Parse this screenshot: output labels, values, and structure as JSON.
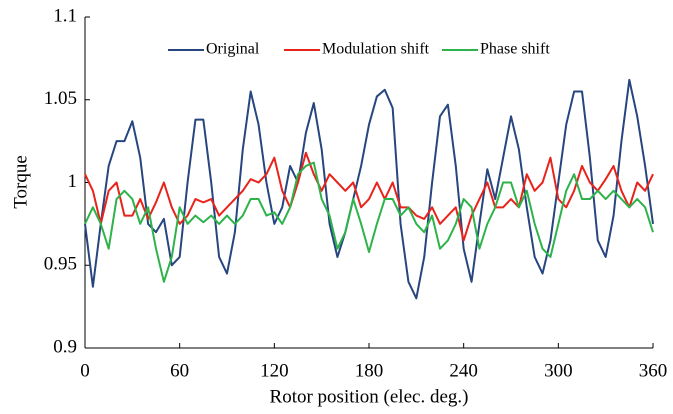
{
  "chart_data": {
    "type": "line",
    "xlabel": "Rotor position (elec. deg.)",
    "ylabel": "Torque",
    "x": [
      0,
      5,
      10,
      15,
      20,
      25,
      30,
      35,
      40,
      45,
      50,
      55,
      60,
      65,
      70,
      75,
      80,
      85,
      90,
      95,
      100,
      105,
      110,
      115,
      120,
      125,
      130,
      135,
      140,
      145,
      150,
      155,
      160,
      165,
      170,
      175,
      180,
      185,
      190,
      195,
      200,
      205,
      210,
      215,
      220,
      225,
      230,
      235,
      240,
      245,
      250,
      255,
      260,
      265,
      270,
      275,
      280,
      285,
      290,
      295,
      300,
      305,
      310,
      315,
      320,
      325,
      330,
      335,
      340,
      345,
      350,
      355,
      360
    ],
    "series": [
      {
        "name": "Original",
        "color": "#27457f",
        "values": [
          0.975,
          0.937,
          0.975,
          1.01,
          1.025,
          1.025,
          1.037,
          1.015,
          0.975,
          0.97,
          0.978,
          0.95,
          0.955,
          1.0,
          1.038,
          1.038,
          1.0,
          0.955,
          0.945,
          0.97,
          1.02,
          1.055,
          1.035,
          1.0,
          0.975,
          0.985,
          1.01,
          1.0,
          1.03,
          1.048,
          1.02,
          0.975,
          0.955,
          0.97,
          0.99,
          1.01,
          1.035,
          1.052,
          1.056,
          1.045,
          0.975,
          0.94,
          0.93,
          0.955,
          1.0,
          1.04,
          1.047,
          1.01,
          0.96,
          0.94,
          0.975,
          1.008,
          0.99,
          1.015,
          1.04,
          1.02,
          0.985,
          0.955,
          0.945,
          0.965,
          1.0,
          1.035,
          1.055,
          1.055,
          1.015,
          0.965,
          0.955,
          0.98,
          1.025,
          1.062,
          1.04,
          1.01,
          0.975
        ]
      },
      {
        "name": "Modulation shift",
        "color": "#e8231c",
        "values": [
          1.005,
          0.995,
          0.975,
          0.995,
          1.0,
          0.98,
          0.98,
          0.99,
          0.978,
          0.988,
          1.0,
          0.985,
          0.975,
          0.98,
          0.99,
          0.988,
          0.99,
          0.98,
          0.985,
          0.99,
          0.995,
          1.002,
          1.0,
          1.005,
          1.015,
          0.995,
          0.985,
          1.0,
          1.018,
          1.005,
          0.995,
          1.005,
          1.0,
          0.995,
          1.0,
          0.985,
          0.99,
          1.0,
          0.99,
          1.0,
          0.985,
          0.985,
          0.98,
          0.978,
          0.985,
          0.975,
          0.98,
          0.985,
          0.965,
          0.98,
          0.99,
          1.0,
          0.985,
          0.985,
          0.99,
          0.985,
          1.005,
          0.995,
          1.0,
          1.015,
          0.99,
          0.985,
          0.995,
          1.01,
          1.0,
          0.995,
          1.002,
          1.01,
          0.995,
          0.985,
          1.0,
          0.995,
          1.005
        ]
      },
      {
        "name": "Phase shift",
        "color": "#2db34a",
        "values": [
          0.975,
          0.985,
          0.975,
          0.96,
          0.99,
          0.995,
          0.99,
          0.975,
          0.985,
          0.96,
          0.94,
          0.955,
          0.985,
          0.975,
          0.98,
          0.976,
          0.98,
          0.975,
          0.98,
          0.975,
          0.98,
          0.99,
          0.99,
          0.98,
          0.982,
          0.975,
          0.985,
          1.005,
          1.01,
          1.012,
          0.99,
          0.98,
          0.96,
          0.97,
          0.99,
          0.975,
          0.958,
          0.975,
          0.99,
          0.99,
          0.98,
          0.985,
          0.975,
          0.97,
          0.98,
          0.96,
          0.965,
          0.975,
          0.99,
          0.985,
          0.96,
          0.975,
          0.985,
          1.0,
          1.0,
          0.985,
          0.995,
          0.975,
          0.96,
          0.955,
          0.975,
          0.995,
          1.005,
          0.99,
          0.99,
          0.995,
          0.99,
          0.995,
          0.99,
          0.985,
          0.99,
          0.985,
          0.97
        ]
      }
    ],
    "xlim": [
      0,
      360
    ],
    "xticks": [
      0,
      60,
      120,
      180,
      240,
      300,
      360
    ],
    "ylim": [
      0.9,
      1.1
    ],
    "yticks": [
      0.9,
      0.95,
      1,
      1.05,
      1.1
    ],
    "grid": false,
    "legend": "top"
  }
}
